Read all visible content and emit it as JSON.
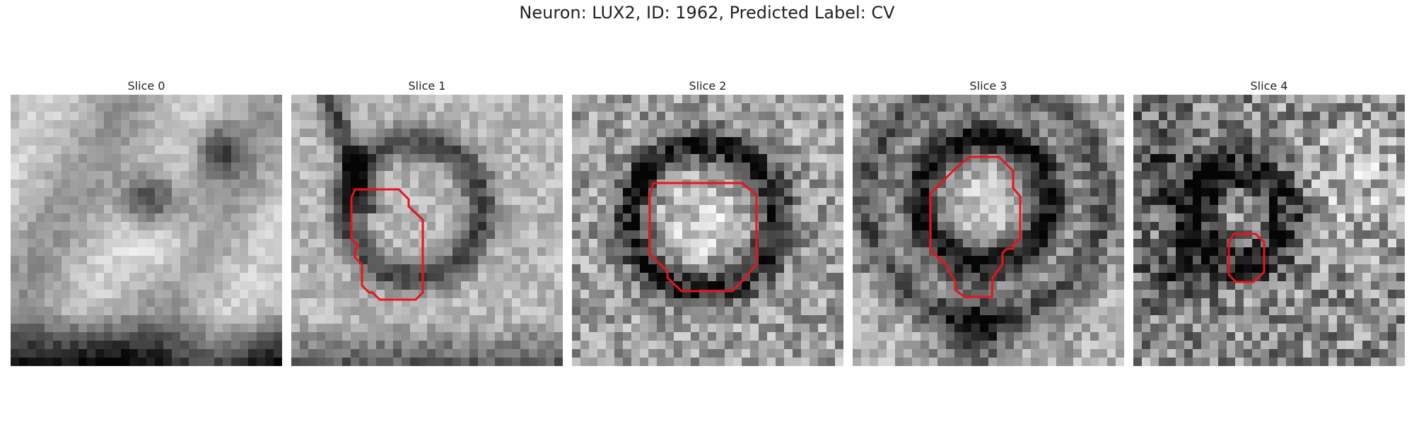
{
  "figure": {
    "title": "Neuron: LUX2, ID: 1962, Predicted Label: CV"
  },
  "panels": [
    {
      "title": "Slice 0"
    },
    {
      "title": "Slice 1"
    },
    {
      "title": "Slice 2"
    },
    {
      "title": "Slice 3"
    },
    {
      "title": "Slice 4"
    }
  ],
  "colors": {
    "contour": "#e8141c"
  }
}
